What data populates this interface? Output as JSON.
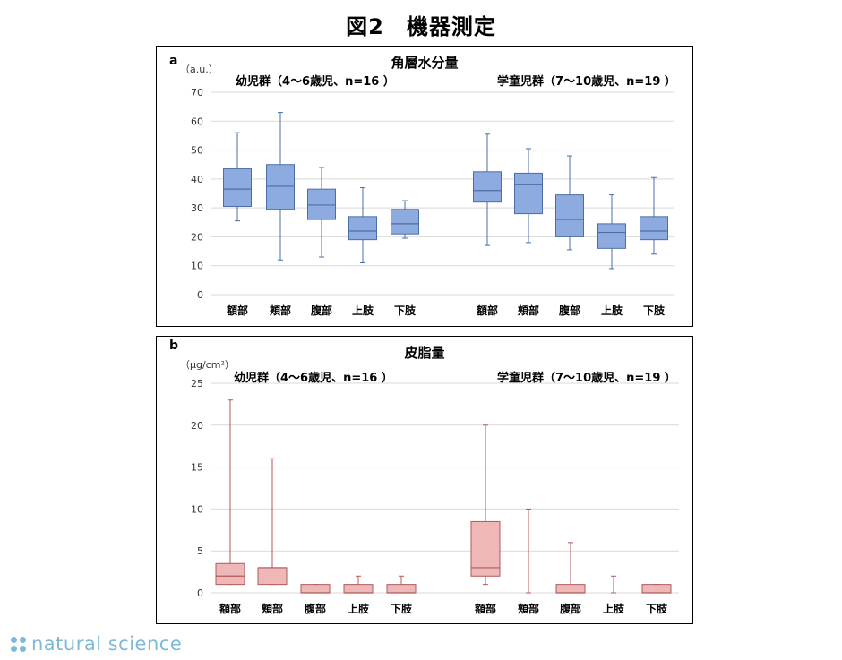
{
  "figure_title": "図2　機器測定",
  "branding": "natural science",
  "chart_data": [
    {
      "panel": "a",
      "type": "boxplot",
      "title": "角層水分量",
      "unit_label": "（a.u.）",
      "ylim": [
        0,
        70
      ],
      "yticks": [
        0,
        10,
        20,
        30,
        40,
        50,
        60,
        70
      ],
      "grid": true,
      "box_color": "#8eabdf",
      "line_color": "#4a6fa8",
      "groups": [
        {
          "label": "幼児群（4～6歳児、n=16 ）",
          "boxes": [
            {
              "category": "額部",
              "min": 25.5,
              "q1": 30.5,
              "median": 36.5,
              "q3": 43.5,
              "max": 56
            },
            {
              "category": "頬部",
              "min": 12,
              "q1": 29.5,
              "median": 37.5,
              "q3": 45,
              "max": 63
            },
            {
              "category": "腹部",
              "min": 13,
              "q1": 26,
              "median": 31,
              "q3": 36.5,
              "max": 44
            },
            {
              "category": "上肢",
              "min": 11,
              "q1": 19,
              "median": 22,
              "q3": 27,
              "max": 37
            },
            {
              "category": "下肢",
              "min": 19.5,
              "q1": 21,
              "median": 24.5,
              "q3": 29.5,
              "max": 32.5
            }
          ]
        },
        {
          "label": "学童児群（7～10歳児、n=19 ）",
          "boxes": [
            {
              "category": "額部",
              "min": 17,
              "q1": 32,
              "median": 36,
              "q3": 42.5,
              "max": 55.5
            },
            {
              "category": "頬部",
              "min": 18,
              "q1": 28,
              "median": 38,
              "q3": 42,
              "max": 50.5
            },
            {
              "category": "腹部",
              "min": 15.5,
              "q1": 20,
              "median": 26,
              "q3": 34.5,
              "max": 48
            },
            {
              "category": "上肢",
              "min": 9,
              "q1": 16,
              "median": 21.5,
              "q3": 24.5,
              "max": 34.5
            },
            {
              "category": "下肢",
              "min": 14,
              "q1": 19,
              "median": 22,
              "q3": 27,
              "max": 40.5
            }
          ]
        }
      ]
    },
    {
      "panel": "b",
      "type": "boxplot",
      "title": "皮脂量",
      "unit_label": "（μg/cm²）",
      "ylim": [
        0,
        25
      ],
      "yticks": [
        0,
        5,
        10,
        15,
        20,
        25
      ],
      "grid": true,
      "box_color": "#efb8b8",
      "line_color": "#b05a5a",
      "groups": [
        {
          "label": "幼児群（4～6歳児、n=16 ）",
          "boxes": [
            {
              "category": "額部",
              "min": 1,
              "q1": 1,
              "median": 2,
              "q3": 3.5,
              "max": 23
            },
            {
              "category": "頬部",
              "min": 1,
              "q1": 1,
              "median": 3,
              "q3": 3,
              "max": 16
            },
            {
              "category": "腹部",
              "min": 0,
              "q1": 0,
              "median": 0,
              "q3": 1,
              "max": 1
            },
            {
              "category": "上肢",
              "min": 0,
              "q1": 0,
              "median": 0,
              "q3": 1,
              "max": 2
            },
            {
              "category": "下肢",
              "min": 0,
              "q1": 0,
              "median": 0,
              "q3": 1,
              "max": 2
            }
          ]
        },
        {
          "label": "学童児群（7～10歳児、n=19 ）",
          "boxes": [
            {
              "category": "額部",
              "min": 1,
              "q1": 2,
              "median": 3,
              "q3": 8.5,
              "max": 20
            },
            {
              "category": "頬部",
              "min": 0,
              "q1": 0,
              "median": 0,
              "q3": 0,
              "max": 10
            },
            {
              "category": "腹部",
              "min": 0,
              "q1": 0,
              "median": 0,
              "q3": 1,
              "max": 6
            },
            {
              "category": "上肢",
              "min": 0,
              "q1": 0,
              "median": 0,
              "q3": 0,
              "max": 2
            },
            {
              "category": "下肢",
              "min": 0,
              "q1": 0,
              "median": 0,
              "q3": 1,
              "max": 1
            }
          ]
        }
      ]
    }
  ]
}
